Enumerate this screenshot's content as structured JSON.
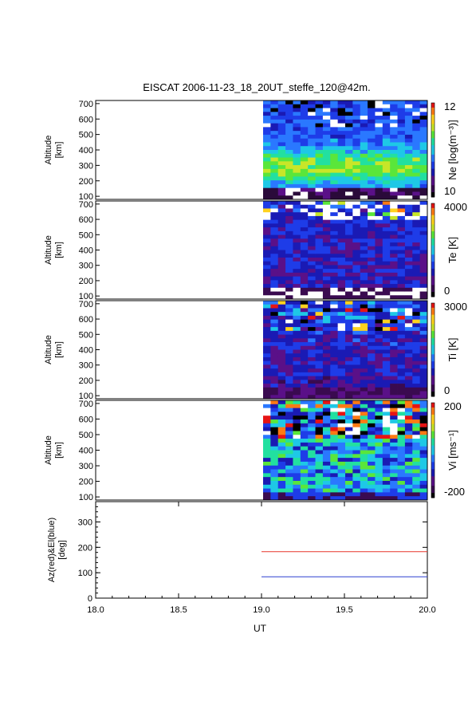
{
  "chart_data": {
    "title": "EISCAT 2006-11-23_18_20UT_steffe_120@42m.",
    "type": "heatmap",
    "x": {
      "label": "UT",
      "range": [
        18.0,
        20.0
      ],
      "ticks": [
        "18.0",
        "18.5",
        "19.0",
        "19.5",
        "20.0"
      ],
      "data_start": 19.0
    },
    "panels": [
      {
        "id": "ne",
        "ylabel_lines": [
          "Altitude",
          "[km]"
        ],
        "yrange": [
          80,
          720
        ],
        "yticks": [
          "100",
          "200",
          "300",
          "400",
          "500",
          "600",
          "700"
        ],
        "colorbar": {
          "label": "Ne [log(m⁻³)]",
          "max": "12",
          "min": "10"
        },
        "description": "electron density, high (green/cyan) near 250-400 km"
      },
      {
        "id": "te",
        "ylabel_lines": [
          "Altitude",
          "[km]"
        ],
        "yrange": [
          80,
          720
        ],
        "yticks": [
          "100",
          "200",
          "300",
          "400",
          "500",
          "600",
          "700"
        ],
        "colorbar": {
          "label": "Te [K]",
          "max": "4000",
          "min": "0"
        }
      },
      {
        "id": "ti",
        "ylabel_lines": [
          "Altitude",
          "[km]"
        ],
        "yrange": [
          80,
          720
        ],
        "yticks": [
          "100",
          "200",
          "300",
          "400",
          "500",
          "600",
          "700"
        ],
        "colorbar": {
          "label": "Ti [K]",
          "max": "3000",
          "min": "0"
        }
      },
      {
        "id": "vi",
        "ylabel_lines": [
          "Altitude",
          "[km]"
        ],
        "yrange": [
          80,
          720
        ],
        "yticks": [
          "100",
          "200",
          "300",
          "400",
          "500",
          "600",
          "700"
        ],
        "colorbar": {
          "label": "Vi [ms⁻¹]",
          "max": "200",
          "min": "-200"
        }
      }
    ],
    "line_panel": {
      "ylabel_lines": [
        "Az(red)&El(blue)",
        "[deg]"
      ],
      "yrange": [
        0,
        380
      ],
      "yticks": [
        "0",
        "100",
        "200",
        "300"
      ],
      "series": [
        {
          "name": "Az",
          "color": "#e8352a",
          "x": [
            19.0,
            20.0
          ],
          "y": [
            183,
            183
          ]
        },
        {
          "name": "El",
          "color": "#2b3fd0",
          "x": [
            19.0,
            20.0
          ],
          "y": [
            84,
            84
          ]
        }
      ]
    },
    "colorscale": [
      "#000000",
      "#3a0a50",
      "#5a1088",
      "#1a1ab4",
      "#1e3ce8",
      "#2a78ff",
      "#1ec8e6",
      "#22e0a0",
      "#5ae63a",
      "#c8e628",
      "#ffd21e",
      "#ff7a14",
      "#e61414"
    ]
  }
}
